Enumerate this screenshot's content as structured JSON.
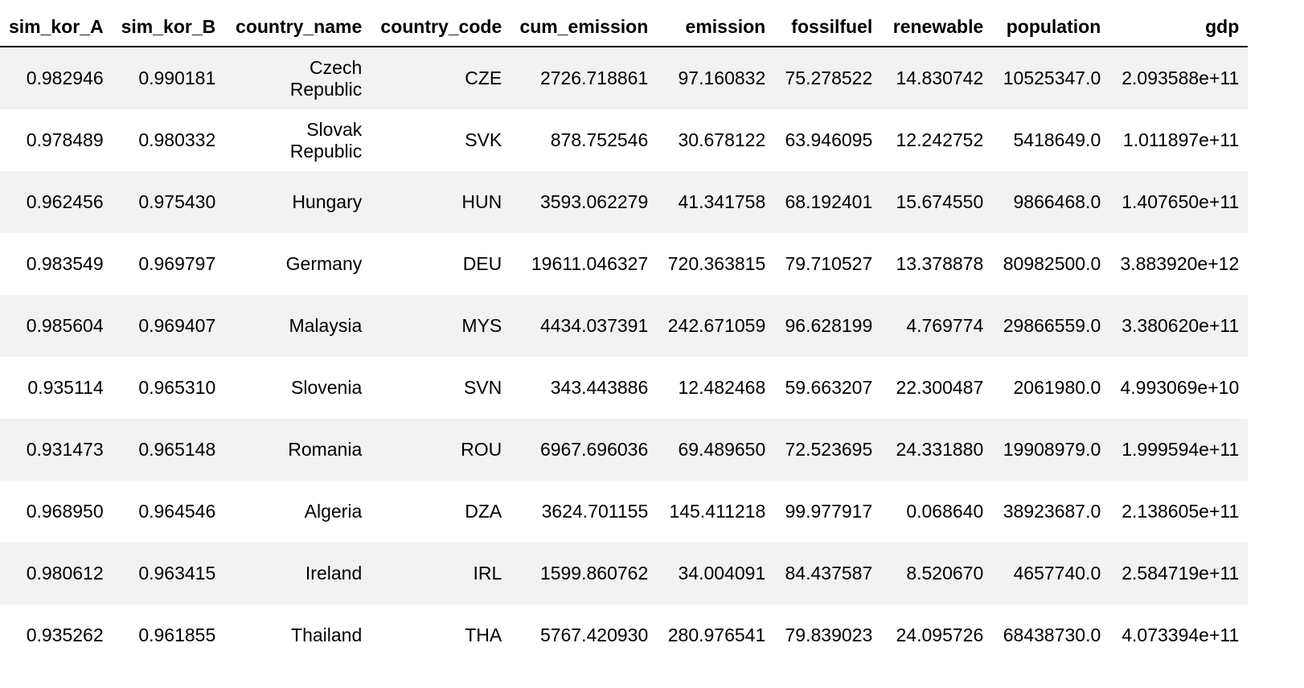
{
  "table": {
    "columns": [
      "sim_kor_A",
      "sim_kor_B",
      "country_name",
      "country_code",
      "cum_emission",
      "emission",
      "fossilfuel",
      "renewable",
      "population",
      "gdp"
    ],
    "rows": [
      [
        "0.982946",
        "0.990181",
        "Czech Republic",
        "CZE",
        "2726.718861",
        "97.160832",
        "75.278522",
        "14.830742",
        "10525347.0",
        "2.093588e+11"
      ],
      [
        "0.978489",
        "0.980332",
        "Slovak Republic",
        "SVK",
        "878.752546",
        "30.678122",
        "63.946095",
        "12.242752",
        "5418649.0",
        "1.011897e+11"
      ],
      [
        "0.962456",
        "0.975430",
        "Hungary",
        "HUN",
        "3593.062279",
        "41.341758",
        "68.192401",
        "15.674550",
        "9866468.0",
        "1.407650e+11"
      ],
      [
        "0.983549",
        "0.969797",
        "Germany",
        "DEU",
        "19611.046327",
        "720.363815",
        "79.710527",
        "13.378878",
        "80982500.0",
        "3.883920e+12"
      ],
      [
        "0.985604",
        "0.969407",
        "Malaysia",
        "MYS",
        "4434.037391",
        "242.671059",
        "96.628199",
        "4.769774",
        "29866559.0",
        "3.380620e+11"
      ],
      [
        "0.935114",
        "0.965310",
        "Slovenia",
        "SVN",
        "343.443886",
        "12.482468",
        "59.663207",
        "22.300487",
        "2061980.0",
        "4.993069e+10"
      ],
      [
        "0.931473",
        "0.965148",
        "Romania",
        "ROU",
        "6967.696036",
        "69.489650",
        "72.523695",
        "24.331880",
        "19908979.0",
        "1.999594e+11"
      ],
      [
        "0.968950",
        "0.964546",
        "Algeria",
        "DZA",
        "3624.701155",
        "145.411218",
        "99.977917",
        "0.068640",
        "38923687.0",
        "2.138605e+11"
      ],
      [
        "0.980612",
        "0.963415",
        "Ireland",
        "IRL",
        "1599.860762",
        "34.004091",
        "84.437587",
        "8.520670",
        "4657740.0",
        "2.584719e+11"
      ],
      [
        "0.935262",
        "0.961855",
        "Thailand",
        "THA",
        "5767.420930",
        "280.976541",
        "79.839023",
        "24.095726",
        "68438730.0",
        "4.073394e+11"
      ]
    ]
  },
  "colors": {
    "header_border": "#000000",
    "row_stripe": "#f2f2f2",
    "row_plain": "#ffffff",
    "text": "#000000"
  }
}
